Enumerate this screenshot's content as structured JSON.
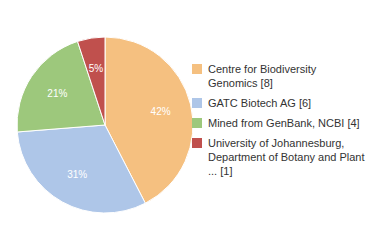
{
  "chart_data": {
    "type": "pie",
    "categories": [
      "Centre for Biodiversity\nGenomics [8]",
      "GATC Biotech AG [6]",
      "Mined from GenBank, NCBI [4]",
      "University of Johannesburg,\nDepartment of Botany and Plant\n... [1]"
    ],
    "values": [
      42,
      31,
      21,
      5
    ],
    "value_labels": [
      "42%",
      "31%",
      "21%",
      "5%"
    ],
    "colors": [
      "#f5c080",
      "#aec6e8",
      "#9dc87c",
      "#c0504d"
    ],
    "data_labels": true,
    "legend": "right"
  }
}
